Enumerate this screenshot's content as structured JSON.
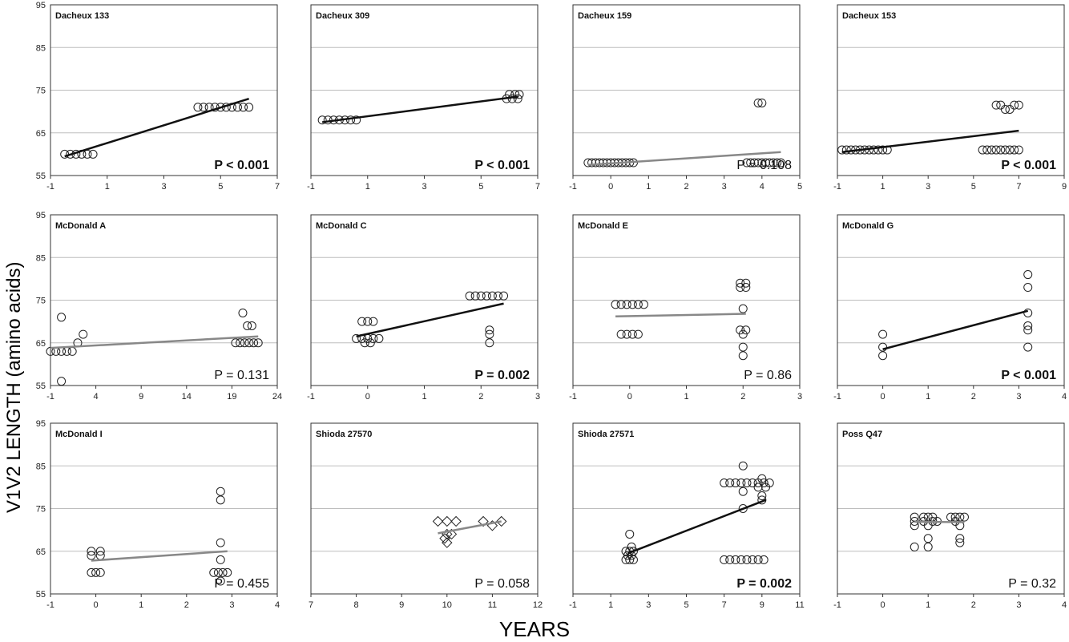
{
  "figure": {
    "ylabel": "V1V2 LENGTH (amino acids)",
    "xlabel": "YEARS"
  },
  "chart_data": [
    {
      "type": "scatter",
      "title": "Dacheux 133",
      "p_text": "P < 0.001",
      "p_bold": true,
      "line_color": "#111111",
      "xlim": [
        -1,
        7
      ],
      "xticks": [
        -1,
        1,
        3,
        5,
        7
      ],
      "ylim": [
        55,
        95
      ],
      "yticks": [
        55,
        65,
        75,
        85,
        95
      ],
      "points": [
        [
          -0.5,
          60
        ],
        [
          -0.3,
          60
        ],
        [
          -0.1,
          60
        ],
        [
          0.1,
          60
        ],
        [
          0.3,
          60
        ],
        [
          0.5,
          60
        ],
        [
          4.2,
          71
        ],
        [
          4.4,
          71
        ],
        [
          4.6,
          71
        ],
        [
          4.8,
          71
        ],
        [
          5.0,
          71
        ],
        [
          5.2,
          71
        ],
        [
          5.4,
          71
        ],
        [
          5.6,
          71
        ],
        [
          5.8,
          71
        ],
        [
          6.0,
          71
        ]
      ],
      "trend": [
        [
          -0.5,
          59.5
        ],
        [
          6.0,
          73
        ]
      ]
    },
    {
      "type": "scatter",
      "title": "Dacheux 309",
      "p_text": "P < 0.001",
      "p_bold": true,
      "line_color": "#111111",
      "xlim": [
        -1,
        7
      ],
      "xticks": [
        -1,
        1,
        3,
        5,
        7
      ],
      "ylim": [
        55,
        95
      ],
      "yticks": [
        55,
        65,
        75,
        85,
        95
      ],
      "points": [
        [
          -0.6,
          68
        ],
        [
          -0.4,
          68
        ],
        [
          -0.2,
          68
        ],
        [
          0.0,
          68
        ],
        [
          0.2,
          68
        ],
        [
          0.4,
          68
        ],
        [
          0.6,
          68
        ],
        [
          5.9,
          73
        ],
        [
          6.0,
          74
        ],
        [
          6.1,
          73
        ],
        [
          6.2,
          74
        ],
        [
          6.3,
          73
        ],
        [
          6.35,
          74
        ]
      ],
      "trend": [
        [
          -0.6,
          67.5
        ],
        [
          6.3,
          73.5
        ]
      ]
    },
    {
      "type": "scatter",
      "title": "Dacheux 159",
      "p_text": "P = 0.108",
      "p_bold": false,
      "line_color": "#888888",
      "xlim": [
        -1,
        5
      ],
      "xticks": [
        -1,
        0,
        1,
        2,
        3,
        4,
        5
      ],
      "ylim": [
        55,
        95
      ],
      "yticks": [
        55,
        65,
        75,
        85,
        95
      ],
      "points": [
        [
          -0.6,
          58
        ],
        [
          -0.5,
          58
        ],
        [
          -0.4,
          58
        ],
        [
          -0.3,
          58
        ],
        [
          -0.2,
          58
        ],
        [
          -0.1,
          58
        ],
        [
          0.0,
          58
        ],
        [
          0.1,
          58
        ],
        [
          0.2,
          58
        ],
        [
          0.3,
          58
        ],
        [
          0.4,
          58
        ],
        [
          0.5,
          58
        ],
        [
          0.6,
          58
        ],
        [
          3.6,
          58
        ],
        [
          3.7,
          58
        ],
        [
          3.8,
          58
        ],
        [
          3.9,
          58
        ],
        [
          4.0,
          58
        ],
        [
          4.1,
          58
        ],
        [
          4.2,
          58
        ],
        [
          4.3,
          58
        ],
        [
          4.4,
          58
        ],
        [
          4.5,
          58
        ],
        [
          3.9,
          72
        ],
        [
          4.0,
          72
        ]
      ],
      "trend": [
        [
          -0.6,
          57.5
        ],
        [
          4.5,
          60.5
        ]
      ]
    },
    {
      "type": "scatter",
      "title": "Dacheux 153",
      "p_text": "P < 0.001",
      "p_bold": true,
      "line_color": "#111111",
      "xlim": [
        -1,
        9
      ],
      "xticks": [
        -1,
        1,
        3,
        5,
        7,
        9
      ],
      "ylim": [
        55,
        95
      ],
      "yticks": [
        55,
        65,
        75,
        85,
        95
      ],
      "points": [
        [
          -0.8,
          61
        ],
        [
          -0.6,
          61
        ],
        [
          -0.4,
          61
        ],
        [
          -0.2,
          61
        ],
        [
          0.0,
          61
        ],
        [
          0.2,
          61
        ],
        [
          0.4,
          61
        ],
        [
          0.6,
          61
        ],
        [
          0.8,
          61
        ],
        [
          1.0,
          61
        ],
        [
          1.2,
          61
        ],
        [
          5.4,
          61
        ],
        [
          5.6,
          61
        ],
        [
          5.8,
          61
        ],
        [
          6.0,
          61
        ],
        [
          6.2,
          61
        ],
        [
          6.4,
          61
        ],
        [
          6.6,
          61
        ],
        [
          6.8,
          61
        ],
        [
          7.0,
          61
        ],
        [
          6.0,
          71.5
        ],
        [
          6.2,
          71.5
        ],
        [
          6.4,
          70.5
        ],
        [
          6.6,
          70.5
        ],
        [
          6.8,
          71.5
        ],
        [
          7.0,
          71.5
        ]
      ],
      "trend": [
        [
          -0.8,
          60.5
        ],
        [
          7.0,
          65.5
        ]
      ]
    },
    {
      "type": "scatter",
      "title": "McDonald A",
      "p_text": "P = 0.131",
      "p_bold": false,
      "line_color": "#888888",
      "xlim": [
        -1,
        24
      ],
      "xticks": [
        -1,
        4,
        9,
        14,
        19,
        24
      ],
      "ylim": [
        55,
        95
      ],
      "yticks": [
        55,
        65,
        75,
        85,
        95
      ],
      "points": [
        [
          -1,
          63
        ],
        [
          -0.4,
          63
        ],
        [
          0.2,
          63
        ],
        [
          0.8,
          63
        ],
        [
          1.4,
          63
        ],
        [
          0.2,
          71
        ],
        [
          0.2,
          56
        ],
        [
          2.0,
          65
        ],
        [
          2.6,
          67
        ],
        [
          19.4,
          65
        ],
        [
          19.9,
          65
        ],
        [
          20.4,
          65
        ],
        [
          20.9,
          65
        ],
        [
          21.4,
          65
        ],
        [
          21.9,
          65
        ],
        [
          20.2,
          72
        ],
        [
          20.7,
          69
        ],
        [
          21.2,
          69
        ]
      ],
      "trend": [
        [
          -1,
          63.8
        ],
        [
          21.9,
          66.5
        ]
      ]
    },
    {
      "type": "scatter",
      "title": "McDonald C",
      "p_text": "P = 0.002",
      "p_bold": true,
      "line_color": "#111111",
      "xlim": [
        -1,
        3
      ],
      "xticks": [
        -1,
        0,
        1,
        2,
        3
      ],
      "ylim": [
        55,
        95
      ],
      "yticks": [
        55,
        65,
        75,
        85,
        95
      ],
      "points": [
        [
          -0.2,
          66
        ],
        [
          -0.1,
          66
        ],
        [
          0.0,
          66
        ],
        [
          0.1,
          66
        ],
        [
          0.2,
          66
        ],
        [
          -0.1,
          70
        ],
        [
          0.0,
          70
        ],
        [
          0.1,
          70
        ],
        [
          -0.05,
          65
        ],
        [
          0.05,
          65
        ],
        [
          1.8,
          76
        ],
        [
          1.9,
          76
        ],
        [
          2.0,
          76
        ],
        [
          2.1,
          76
        ],
        [
          2.2,
          76
        ],
        [
          2.3,
          76
        ],
        [
          2.4,
          76
        ],
        [
          2.15,
          68
        ],
        [
          2.15,
          67
        ],
        [
          2.15,
          65
        ]
      ],
      "trend": [
        [
          -0.2,
          66.5
        ],
        [
          2.4,
          74.2
        ]
      ]
    },
    {
      "type": "scatter",
      "title": "McDonald E",
      "p_text": "P = 0.86",
      "p_bold": false,
      "line_color": "#888888",
      "xlim": [
        -1,
        3
      ],
      "xticks": [
        -1,
        0,
        1,
        2,
        3
      ],
      "ylim": [
        55,
        95
      ],
      "yticks": [
        55,
        65,
        75,
        85,
        95
      ],
      "points": [
        [
          -0.25,
          74
        ],
        [
          -0.15,
          74
        ],
        [
          -0.05,
          74
        ],
        [
          0.05,
          74
        ],
        [
          0.15,
          74
        ],
        [
          0.25,
          74
        ],
        [
          -0.15,
          67
        ],
        [
          -0.05,
          67
        ],
        [
          0.05,
          67
        ],
        [
          0.15,
          67
        ],
        [
          1.95,
          79
        ],
        [
          2.05,
          79
        ],
        [
          1.95,
          78
        ],
        [
          2.05,
          78
        ],
        [
          2.0,
          73
        ],
        [
          1.95,
          68
        ],
        [
          2.05,
          68
        ],
        [
          2.0,
          67
        ],
        [
          2.0,
          64
        ],
        [
          2.0,
          62
        ]
      ],
      "trend": [
        [
          -0.25,
          71.2
        ],
        [
          2.05,
          71.8
        ]
      ]
    },
    {
      "type": "scatter",
      "title": "McDonald G",
      "p_text": "P < 0.001",
      "p_bold": true,
      "line_color": "#111111",
      "xlim": [
        -1,
        4
      ],
      "xticks": [
        -1,
        0,
        1,
        2,
        3,
        4
      ],
      "ylim": [
        55,
        95
      ],
      "yticks": [
        55,
        65,
        75,
        85,
        95
      ],
      "points": [
        [
          0,
          67
        ],
        [
          0,
          64
        ],
        [
          0,
          62
        ],
        [
          3.2,
          81
        ],
        [
          3.2,
          78
        ],
        [
          3.2,
          72
        ],
        [
          3.2,
          69
        ],
        [
          3.2,
          68
        ],
        [
          3.2,
          64
        ]
      ],
      "trend": [
        [
          0,
          63.5
        ],
        [
          3.2,
          72.5
        ]
      ]
    },
    {
      "type": "scatter",
      "title": "McDonald I",
      "p_text": "P = 0.455",
      "p_bold": false,
      "line_color": "#888888",
      "xlim": [
        -1,
        4
      ],
      "xticks": [
        -1,
        0,
        1,
        2,
        3,
        4
      ],
      "ylim": [
        55,
        95
      ],
      "yticks": [
        55,
        65,
        75,
        85,
        95
      ],
      "points": [
        [
          -0.1,
          65
        ],
        [
          0.1,
          65
        ],
        [
          -0.1,
          64
        ],
        [
          0.1,
          64
        ],
        [
          -0.1,
          60
        ],
        [
          0.0,
          60
        ],
        [
          0.1,
          60
        ],
        [
          2.6,
          60
        ],
        [
          2.7,
          60
        ],
        [
          2.8,
          60
        ],
        [
          2.9,
          60
        ],
        [
          2.75,
          79
        ],
        [
          2.75,
          77
        ],
        [
          2.75,
          67
        ],
        [
          2.75,
          63
        ],
        [
          2.75,
          58
        ]
      ],
      "trend": [
        [
          -0.1,
          62.8
        ],
        [
          2.9,
          65
        ]
      ]
    },
    {
      "type": "scatter",
      "marker": "diamond",
      "title": "Shioda 27570",
      "p_text": "P = 0.058",
      "p_bold": false,
      "line_color": "#888888",
      "xlim": [
        7,
        12
      ],
      "xticks": [
        7,
        8,
        9,
        10,
        11,
        12
      ],
      "ylim": [
        55,
        95
      ],
      "yticks": [
        55,
        65,
        75,
        85,
        95
      ],
      "points": [
        [
          9.8,
          72
        ],
        [
          10.0,
          72
        ],
        [
          10.2,
          72
        ],
        [
          10.0,
          69
        ],
        [
          10.1,
          69
        ],
        [
          9.95,
          68
        ],
        [
          10.0,
          67
        ],
        [
          10.8,
          72
        ],
        [
          11.0,
          71
        ],
        [
          11.2,
          72
        ]
      ],
      "trend": [
        [
          9.8,
          69.2
        ],
        [
          11.2,
          72
        ]
      ]
    },
    {
      "type": "scatter",
      "title": "Shioda 27571",
      "p_text": "P = 0.002",
      "p_bold": true,
      "line_color": "#111111",
      "xlim": [
        -1,
        11
      ],
      "xticks": [
        -1,
        1,
        3,
        5,
        7,
        9,
        11
      ],
      "ylim": [
        55,
        95
      ],
      "yticks": [
        55,
        65,
        75,
        85,
        95
      ],
      "points": [
        [
          1.8,
          65
        ],
        [
          2.0,
          65
        ],
        [
          2.2,
          65
        ],
        [
          1.9,
          64
        ],
        [
          2.1,
          64
        ],
        [
          1.8,
          63
        ],
        [
          2.0,
          63
        ],
        [
          2.2,
          63
        ],
        [
          2.0,
          69
        ],
        [
          2.1,
          66
        ],
        [
          7.0,
          81
        ],
        [
          7.3,
          81
        ],
        [
          7.6,
          81
        ],
        [
          7.9,
          81
        ],
        [
          8.2,
          81
        ],
        [
          8.5,
          81
        ],
        [
          8.8,
          81
        ],
        [
          9.1,
          81
        ],
        [
          9.4,
          81
        ],
        [
          7.0,
          63
        ],
        [
          7.3,
          63
        ],
        [
          7.6,
          63
        ],
        [
          7.9,
          63
        ],
        [
          8.2,
          63
        ],
        [
          8.5,
          63
        ],
        [
          8.8,
          63
        ],
        [
          9.1,
          63
        ],
        [
          8.0,
          85
        ],
        [
          8.0,
          79
        ],
        [
          8.0,
          75
        ],
        [
          8.8,
          80
        ],
        [
          9.0,
          82
        ],
        [
          9.2,
          80
        ],
        [
          9.0,
          78
        ],
        [
          9.0,
          77
        ]
      ],
      "trend": [
        [
          1.9,
          64.5
        ],
        [
          9.2,
          77
        ]
      ]
    },
    {
      "type": "scatter",
      "title": "Poss Q47",
      "p_text": "P = 0.32",
      "p_bold": false,
      "line_color": "#888888",
      "xlim": [
        -1,
        4
      ],
      "xticks": [
        -1,
        0,
        1,
        2,
        3,
        4
      ],
      "ylim": [
        55,
        95
      ],
      "yticks": [
        55,
        65,
        75,
        85,
        95
      ],
      "points": [
        [
          0.7,
          73
        ],
        [
          0.9,
          73
        ],
        [
          1.0,
          73
        ],
        [
          1.1,
          73
        ],
        [
          0.7,
          72
        ],
        [
          0.9,
          72
        ],
        [
          1.1,
          72
        ],
        [
          1.2,
          72
        ],
        [
          0.7,
          71
        ],
        [
          1.0,
          71
        ],
        [
          1.0,
          68
        ],
        [
          0.7,
          66
        ],
        [
          1.0,
          66
        ],
        [
          1.5,
          73
        ],
        [
          1.6,
          73
        ],
        [
          1.7,
          73
        ],
        [
          1.8,
          73
        ],
        [
          1.6,
          72
        ],
        [
          1.7,
          71
        ],
        [
          1.7,
          68
        ],
        [
          1.7,
          67
        ]
      ],
      "trend": [
        [
          0.7,
          71.9
        ],
        [
          1.8,
          71.8
        ]
      ]
    }
  ]
}
